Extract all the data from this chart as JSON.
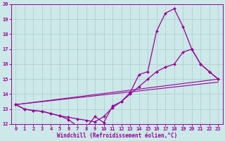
{
  "xlabel": "Windchill (Refroidissement éolien,°C)",
  "bg_color": "#cce8e8",
  "line_color": "#990099",
  "grid_color": "#aacccc",
  "xlim": [
    -0.5,
    23.5
  ],
  "ylim": [
    12,
    20
  ],
  "xticks": [
    0,
    1,
    2,
    3,
    4,
    5,
    6,
    7,
    8,
    9,
    10,
    11,
    12,
    13,
    14,
    15,
    16,
    17,
    18,
    19,
    20,
    21,
    22,
    23
  ],
  "yticks": [
    12,
    13,
    14,
    15,
    16,
    17,
    18,
    19,
    20
  ],
  "line1_x": [
    0,
    1,
    2,
    3,
    4,
    5,
    6,
    7,
    8,
    9,
    10,
    11,
    12,
    13,
    14,
    15,
    16,
    17,
    18,
    19,
    20,
    21,
    22,
    23
  ],
  "line1_y": [
    13.3,
    13.0,
    12.9,
    12.85,
    12.7,
    12.55,
    12.3,
    11.85,
    11.75,
    12.5,
    12.1,
    13.2,
    13.5,
    14.1,
    15.3,
    15.5,
    18.2,
    19.4,
    19.7,
    18.5,
    17.0,
    16.0,
    15.5,
    15.0
  ],
  "line2_x": [
    0,
    1,
    2,
    3,
    4,
    5,
    6,
    7,
    8,
    9,
    10,
    11,
    12,
    13,
    14,
    15,
    16,
    17,
    18,
    19,
    20,
    21,
    22,
    23
  ],
  "line2_y": [
    13.3,
    13.0,
    12.9,
    12.85,
    12.7,
    12.55,
    12.45,
    12.35,
    12.25,
    12.15,
    12.5,
    13.1,
    13.5,
    14.0,
    14.5,
    15.0,
    15.5,
    15.8,
    16.0,
    16.8,
    17.0,
    16.0,
    15.5,
    15.0
  ],
  "line3_x": [
    0,
    23
  ],
  "line3_y": [
    13.3,
    15.0
  ],
  "line4_x": [
    0,
    23
  ],
  "line4_y": [
    13.3,
    14.8
  ]
}
